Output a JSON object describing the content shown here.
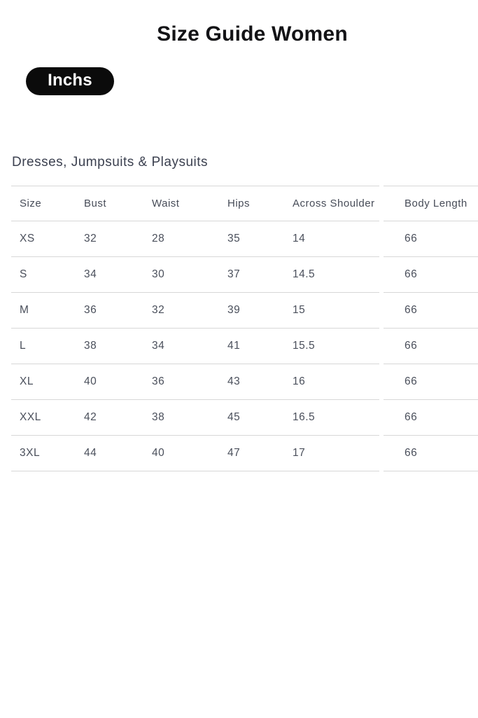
{
  "page": {
    "title": "Size Guide Women"
  },
  "unit_toggle": {
    "label": "Inchs"
  },
  "section": {
    "title": "Dresses, Jumpsuits & Playsuits"
  },
  "size_table": {
    "headers": [
      "Size",
      "Bust",
      "Waist",
      "Hips",
      "Across Shoulder",
      "Body Length"
    ],
    "rows": [
      [
        "XS",
        "32",
        "28",
        "35",
        "14",
        "66"
      ],
      [
        "S",
        "34",
        "30",
        "37",
        "14.5",
        "66"
      ],
      [
        "M",
        "36",
        "32",
        "39",
        "15",
        "66"
      ],
      [
        "L",
        "38",
        "34",
        "41",
        "15.5",
        "66"
      ],
      [
        "XL",
        "40",
        "36",
        "43",
        "16",
        "66"
      ],
      [
        "XXL",
        "42",
        "38",
        "45",
        "16.5",
        "66"
      ],
      [
        "3XL",
        "44",
        "40",
        "47",
        "17",
        "66"
      ]
    ]
  },
  "colors": {
    "pill_background": "#0b0b0b",
    "pill_text": "#ffffff",
    "title_text": "#131316",
    "table_text": "#4a4f5b",
    "table_border": "#d7d7d7"
  }
}
